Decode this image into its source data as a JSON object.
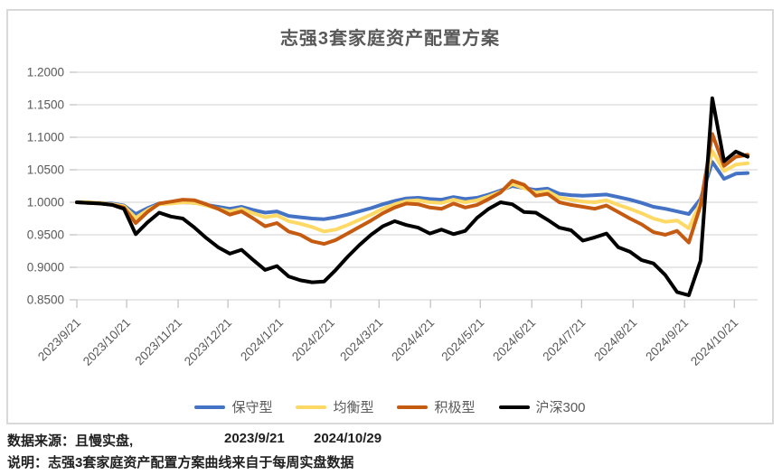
{
  "chart_data": {
    "type": "line",
    "title": "志强3套家庭资产配置方案",
    "grid": "horizontal",
    "legend_position": "bottom",
    "ylim": [
      0.85,
      1.2
    ],
    "ytick_labels": [
      "1.2000",
      "1.1500",
      "1.1000",
      "1.0500",
      "1.0000",
      "0.9500",
      "0.9000",
      "0.8500"
    ],
    "x_axis": {
      "start_date": "2023/9/21",
      "end_date": "2024/10/29",
      "axis_max_day": 410,
      "data_span_days": 404,
      "ticks": [
        {
          "label": "2023/9/21",
          "day": 0
        },
        {
          "label": "2023/10/21",
          "day": 30
        },
        {
          "label": "2023/11/21",
          "day": 61
        },
        {
          "label": "2023/12/21",
          "day": 91
        },
        {
          "label": "2024/1/21",
          "day": 122
        },
        {
          "label": "2024/2/21",
          "day": 153
        },
        {
          "label": "2024/3/21",
          "day": 182
        },
        {
          "label": "2024/4/21",
          "day": 213
        },
        {
          "label": "2024/5/21",
          "day": 243
        },
        {
          "label": "2024/6/21",
          "day": 274
        },
        {
          "label": "2024/7/21",
          "day": 304
        },
        {
          "label": "2024/8/21",
          "day": 335
        },
        {
          "label": "2024/9/21",
          "day": 366
        },
        {
          "label": "2024/10/21",
          "day": 396
        }
      ]
    },
    "series": [
      {
        "name": "保守型",
        "color": "#4472C4",
        "values": [
          1.0,
          1.0,
          0.999,
          0.998,
          0.995,
          0.982,
          0.991,
          0.998,
          0.999,
          1.0,
          0.999,
          0.996,
          0.993,
          0.99,
          0.993,
          0.988,
          0.984,
          0.986,
          0.979,
          0.977,
          0.975,
          0.974,
          0.977,
          0.981,
          0.986,
          0.991,
          0.997,
          1.002,
          1.006,
          1.007,
          1.005,
          1.004,
          1.008,
          1.005,
          1.007,
          1.012,
          1.018,
          1.025,
          1.022,
          1.019,
          1.021,
          1.013,
          1.011,
          1.01,
          1.011,
          1.012,
          1.008,
          1.004,
          0.999,
          0.993,
          0.99,
          0.986,
          0.982,
          1.005,
          1.062,
          1.036,
          1.044,
          1.045
        ]
      },
      {
        "name": "均衡型",
        "color": "#FFD966",
        "values": [
          1.0,
          1.0,
          0.999,
          0.997,
          0.994,
          0.976,
          0.988,
          0.997,
          0.998,
          1.0,
          0.999,
          0.995,
          0.99,
          0.986,
          0.99,
          0.983,
          0.977,
          0.98,
          0.971,
          0.967,
          0.962,
          0.955,
          0.958,
          0.965,
          0.973,
          0.981,
          0.99,
          0.997,
          1.002,
          1.003,
          1.0,
          0.999,
          1.004,
          1.0,
          1.003,
          1.009,
          1.016,
          1.028,
          1.022,
          1.015,
          1.017,
          1.007,
          1.004,
          1.001,
          1.0,
          1.003,
          0.996,
          0.99,
          0.983,
          0.975,
          0.97,
          0.972,
          0.96,
          1.0,
          1.079,
          1.048,
          1.058,
          1.06
        ]
      },
      {
        "name": "积极型",
        "color": "#C55A11",
        "values": [
          1.0,
          0.999,
          0.998,
          0.996,
          0.992,
          0.968,
          0.985,
          0.998,
          1.001,
          1.004,
          1.003,
          0.997,
          0.99,
          0.981,
          0.986,
          0.975,
          0.963,
          0.968,
          0.955,
          0.95,
          0.94,
          0.936,
          0.942,
          0.952,
          0.962,
          0.972,
          0.983,
          0.992,
          0.998,
          0.997,
          0.992,
          0.99,
          0.998,
          0.992,
          0.996,
          1.005,
          1.015,
          1.033,
          1.027,
          1.01,
          1.013,
          1.0,
          0.996,
          0.993,
          0.99,
          0.995,
          0.985,
          0.975,
          0.966,
          0.954,
          0.95,
          0.956,
          0.938,
          0.995,
          1.105,
          1.056,
          1.07,
          1.073
        ]
      },
      {
        "name": "沪深300",
        "color": "#000000",
        "values": [
          1.0,
          0.999,
          0.998,
          0.996,
          0.99,
          0.951,
          0.969,
          0.984,
          0.978,
          0.975,
          0.961,
          0.945,
          0.931,
          0.921,
          0.927,
          0.911,
          0.896,
          0.902,
          0.886,
          0.88,
          0.877,
          0.878,
          0.896,
          0.916,
          0.934,
          0.95,
          0.963,
          0.971,
          0.965,
          0.961,
          0.952,
          0.958,
          0.951,
          0.956,
          0.976,
          0.99,
          1.0,
          0.997,
          0.985,
          0.984,
          0.973,
          0.961,
          0.957,
          0.941,
          0.946,
          0.952,
          0.931,
          0.924,
          0.911,
          0.906,
          0.888,
          0.862,
          0.857,
          0.91,
          1.16,
          1.063,
          1.078,
          1.07
        ]
      }
    ]
  },
  "footer": {
    "source_label": "数据来源：且慢实盘,",
    "date_start": "2023/9/21",
    "date_end": "2024/10/29",
    "note": "说明：志强3套家庭资产配置方案曲线来自于每周实盘数据"
  },
  "colors": {
    "gridline": "#d9d9d9",
    "tick": "#bfbfbf",
    "axis_label": "#595959",
    "title": "#595959"
  }
}
